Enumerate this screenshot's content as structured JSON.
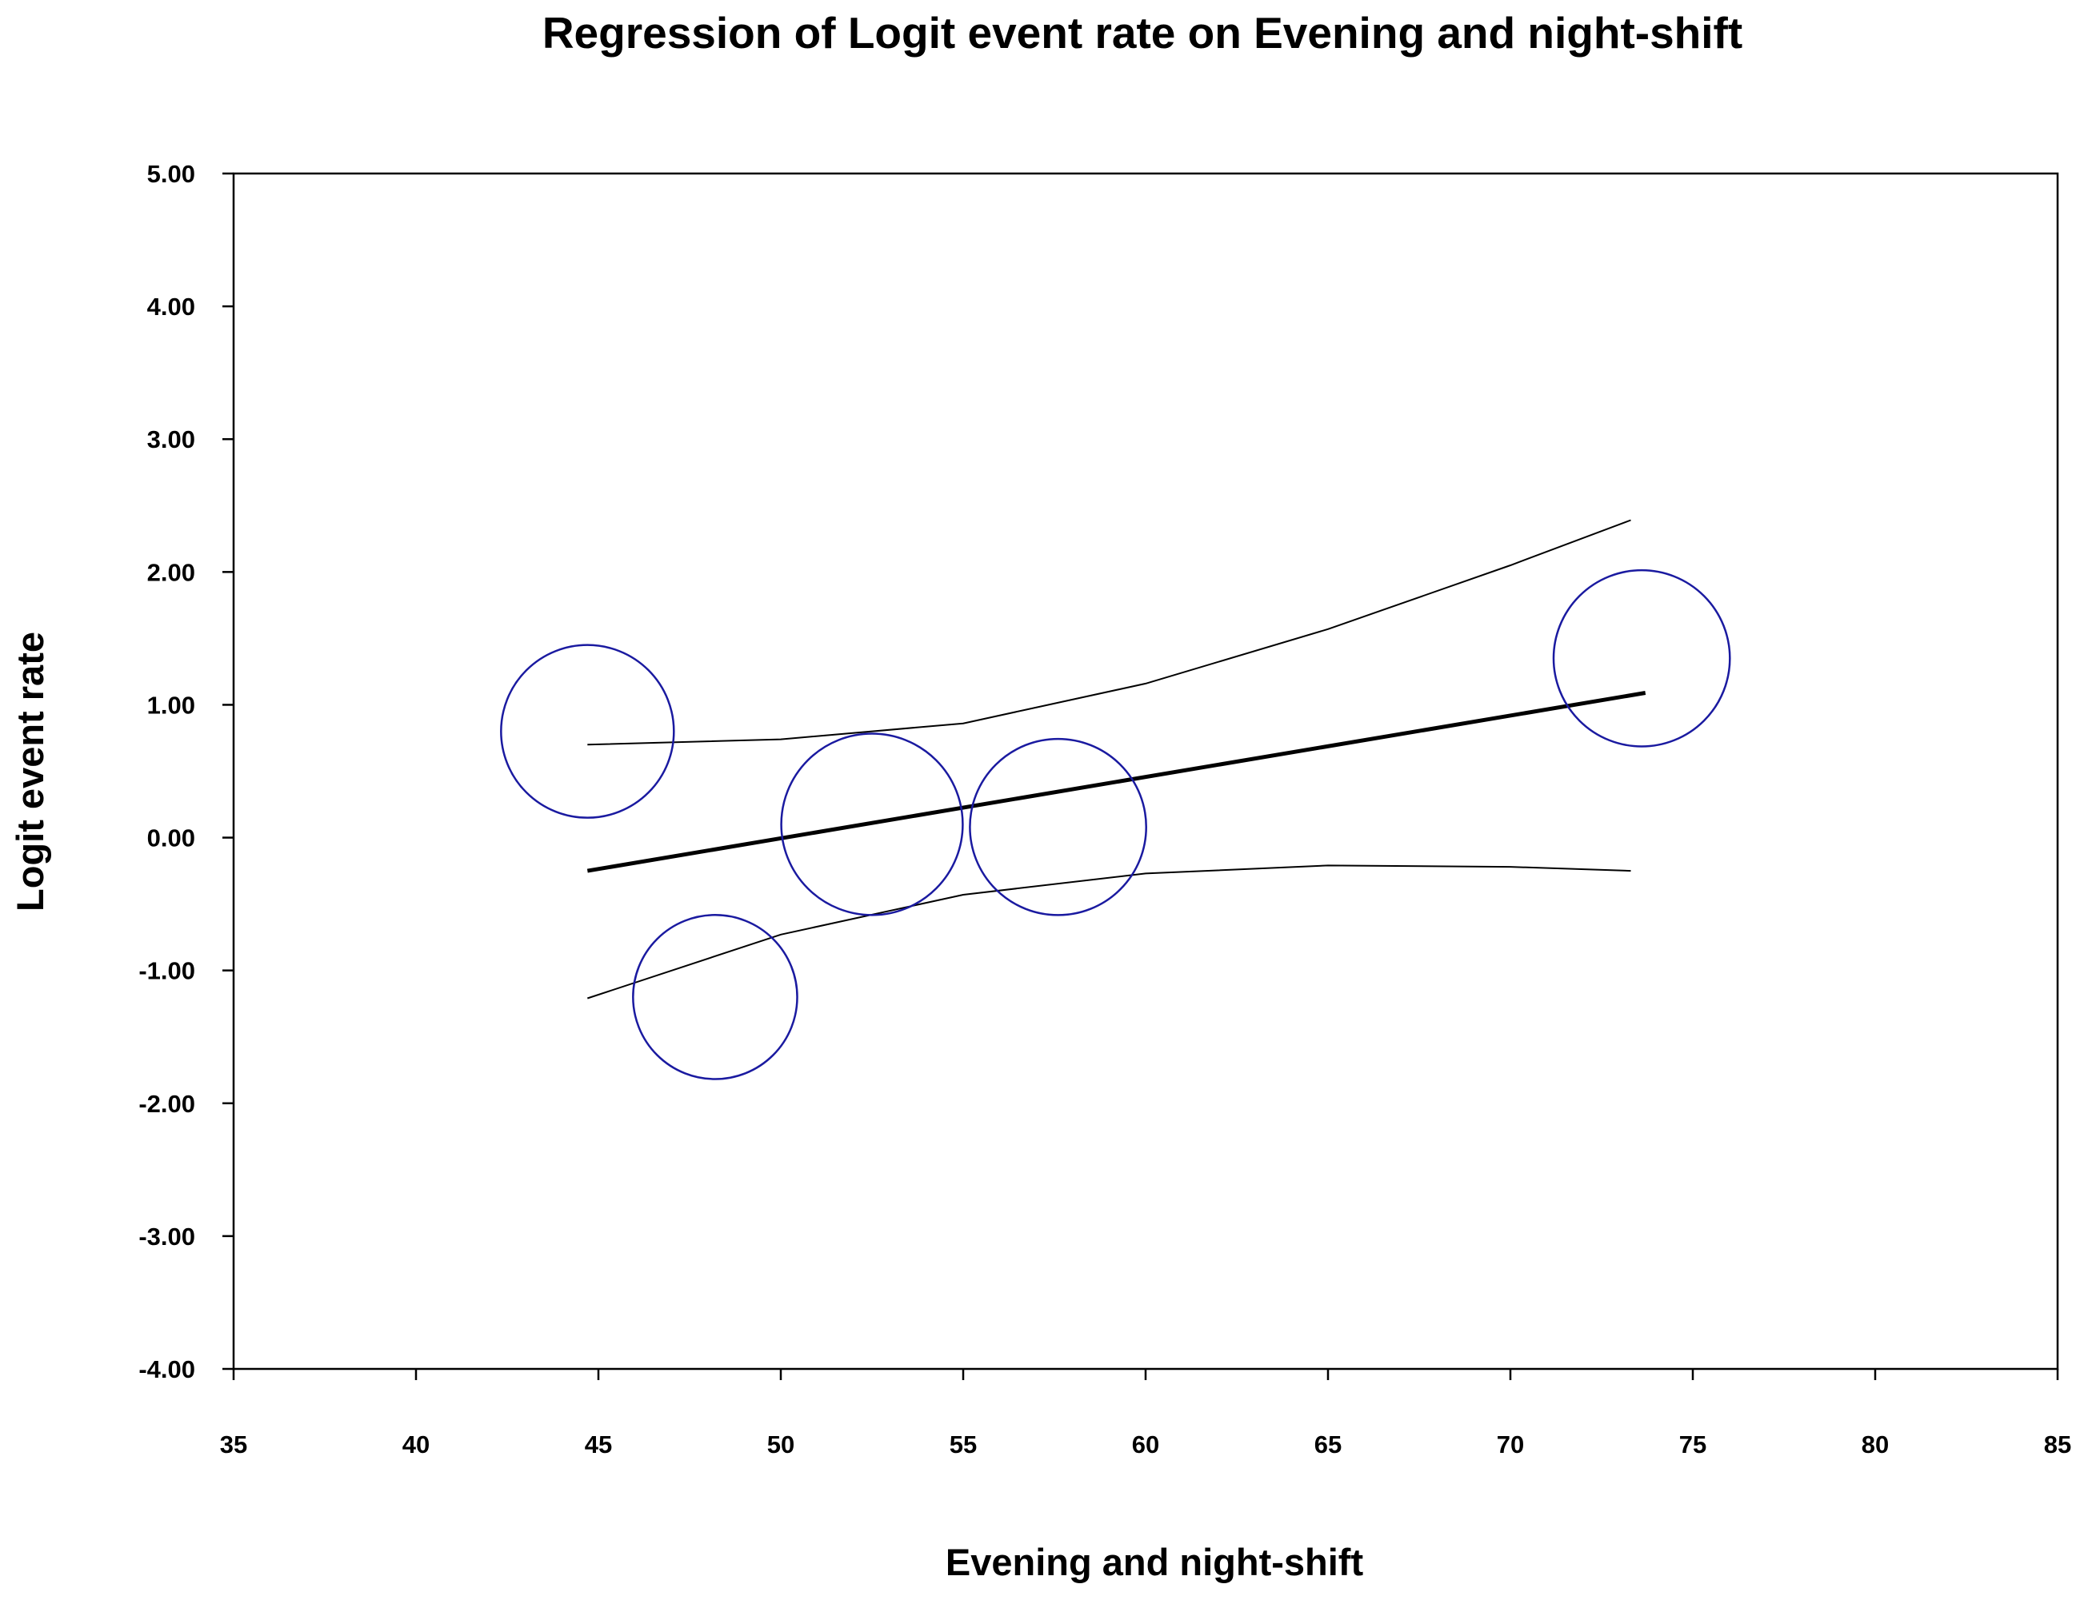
{
  "chart_data": {
    "type": "scatter",
    "title": "Regression of Logit event rate on Evening and night-shift",
    "xlabel": "Evening and night-shift",
    "ylabel": "Logit event rate",
    "xlim": [
      35,
      85
    ],
    "ylim": [
      -4,
      5
    ],
    "x_ticks": [
      "35",
      "40",
      "45",
      "50",
      "55",
      "60",
      "65",
      "70",
      "75",
      "80",
      "85"
    ],
    "y_ticks": [
      "5.00",
      "4.00",
      "3.00",
      "2.00",
      "1.00",
      "0.00",
      "-1.00",
      "-2.00",
      "-3.00",
      "-4.00"
    ],
    "grid": false,
    "points": [
      {
        "x": 44.7,
        "y": 0.8,
        "size": 1.0
      },
      {
        "x": 48.2,
        "y": -1.2,
        "size": 0.95
      },
      {
        "x": 52.5,
        "y": 0.1,
        "size": 1.05
      },
      {
        "x": 57.6,
        "y": 0.08,
        "size": 1.02
      },
      {
        "x": 73.6,
        "y": 1.35,
        "size": 1.02
      }
    ],
    "regression_line": [
      {
        "x": 44.7,
        "y": -0.25
      },
      {
        "x": 73.7,
        "y": 1.09
      }
    ],
    "ci_upper": [
      {
        "x": 44.7,
        "y": 0.7
      },
      {
        "x": 50,
        "y": 0.74
      },
      {
        "x": 55,
        "y": 0.86
      },
      {
        "x": 60,
        "y": 1.16
      },
      {
        "x": 65,
        "y": 1.57
      },
      {
        "x": 70,
        "y": 2.05
      },
      {
        "x": 73.3,
        "y": 2.39
      }
    ],
    "ci_lower": [
      {
        "x": 44.7,
        "y": -1.21
      },
      {
        "x": 50,
        "y": -0.73
      },
      {
        "x": 55,
        "y": -0.43
      },
      {
        "x": 60,
        "y": -0.27
      },
      {
        "x": 65,
        "y": -0.21
      },
      {
        "x": 70,
        "y": -0.22
      },
      {
        "x": 73.3,
        "y": -0.25
      }
    ],
    "colors": {
      "bubble": "#1a1aa0",
      "line": "#000000"
    }
  }
}
